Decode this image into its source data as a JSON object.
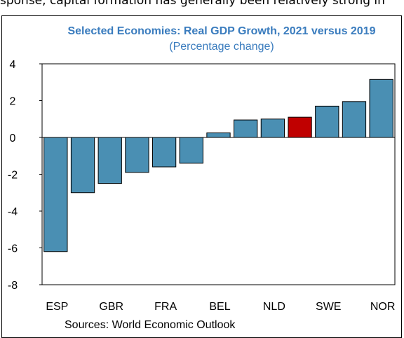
{
  "top_text": "sponse, capital formation has generally been relatively strong in",
  "chart_data": {
    "type": "bar",
    "title": "Selected Economies: Real GDP Growth, 2021 versus 2019",
    "subtitle": "(Percentage change)",
    "categories": [
      "ESP",
      "",
      "GBR",
      "",
      "FRA",
      "",
      "BEL",
      "",
      "NLD",
      "",
      "SWE",
      "",
      "NOR"
    ],
    "x_tick_labels": [
      "ESP",
      "GBR",
      "FRA",
      "BEL",
      "NLD",
      "SWE",
      "NOR"
    ],
    "values": [
      -6.2,
      -3.0,
      -2.5,
      -1.9,
      -1.6,
      -1.4,
      0.25,
      0.95,
      1.0,
      1.1,
      1.7,
      1.95,
      3.15
    ],
    "highlight_index": 9,
    "ylim": [
      -8,
      4
    ],
    "yticks": [
      "4",
      "2",
      "0",
      "-2",
      "-4",
      "-6",
      "-8"
    ],
    "ytick_values": [
      4,
      2,
      0,
      -2,
      -4,
      -6,
      -8
    ],
    "grid": false,
    "colors": {
      "bar": "#4a8fb3",
      "highlight": "#c00000",
      "title": "#3a7cbe",
      "border": "#000000"
    }
  },
  "source": "Sources: World Economic Outlook"
}
